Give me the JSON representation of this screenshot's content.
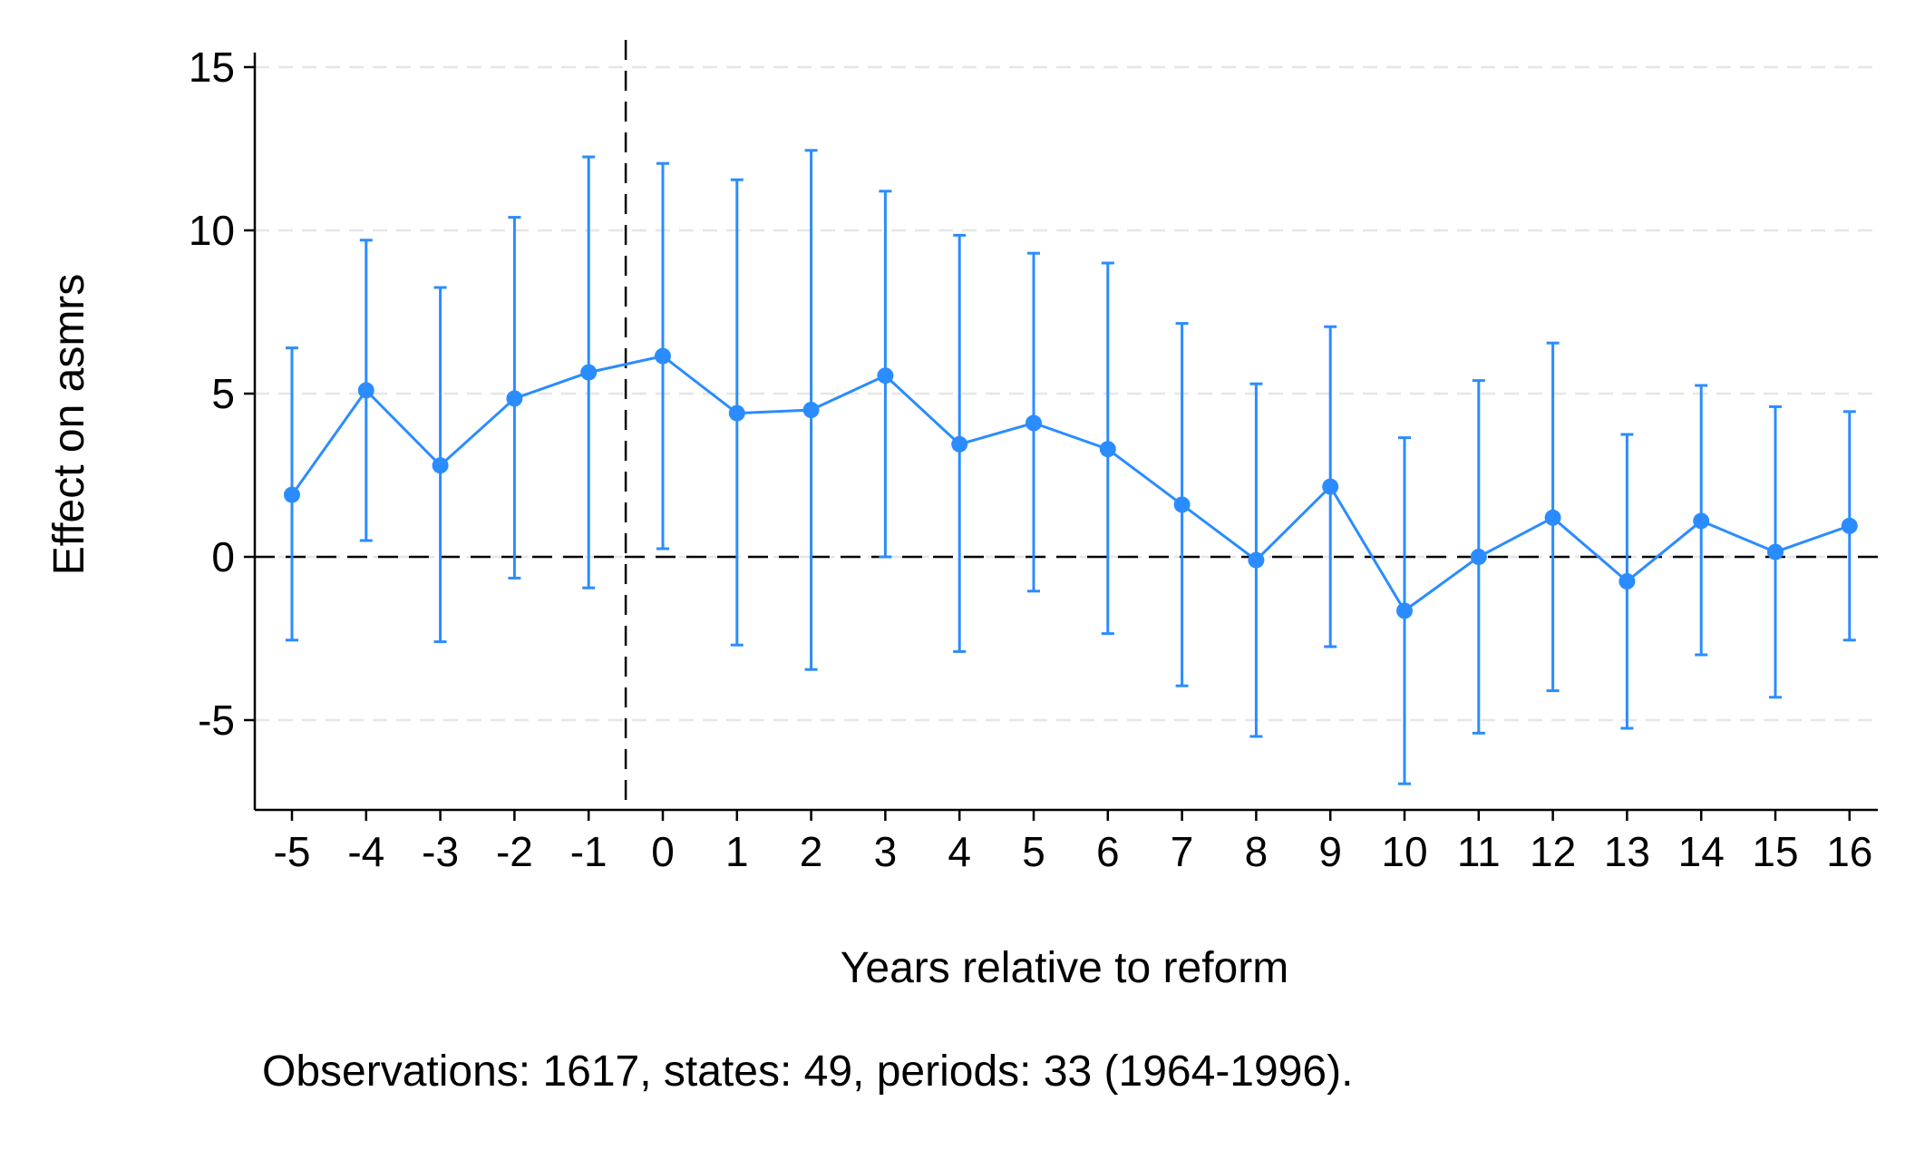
{
  "chart_data": {
    "type": "scatter",
    "title": "",
    "xlabel": "Years relative to reform",
    "ylabel": "Effect on asmrs",
    "note": "Observations: 1617, states: 49, periods: 33 (1964-1996).",
    "x": [
      -5,
      -4,
      -3,
      -2,
      -1,
      0,
      1,
      2,
      3,
      4,
      5,
      6,
      7,
      8,
      9,
      10,
      11,
      12,
      13,
      14,
      15,
      16
    ],
    "x_tick_labels": [
      "-5",
      "-4",
      "-3",
      "-2",
      "-1",
      "0",
      "1",
      "2",
      "3",
      "4",
      "5",
      "6",
      "7",
      "8",
      "9",
      "10",
      "11",
      "12",
      "13",
      "14",
      "15",
      "16"
    ],
    "y_ticks": [
      -5,
      0,
      5,
      10,
      15
    ],
    "y_tick_labels": [
      "-5",
      "0",
      "5",
      "10",
      "15"
    ],
    "ylim": [
      -7.8,
      15.5
    ],
    "series": [
      {
        "estimate": [
          1.9,
          5.1,
          2.8,
          4.85,
          5.65,
          6.15,
          4.4,
          4.5,
          5.55,
          3.45,
          4.1,
          3.3,
          1.6,
          -0.1,
          2.15,
          -1.65,
          0.0,
          1.2,
          -0.75,
          1.1,
          0.15,
          0.95
        ],
        "ci_low": [
          -2.55,
          0.5,
          -2.6,
          -0.65,
          -0.95,
          0.25,
          -2.7,
          -3.45,
          0.0,
          -2.9,
          -1.05,
          -2.35,
          -3.95,
          -5.5,
          -2.75,
          -6.95,
          -5.4,
          -4.1,
          -5.25,
          -3.0,
          -4.3,
          -2.55
        ],
        "ci_high": [
          6.4,
          9.7,
          8.25,
          10.4,
          12.25,
          12.05,
          11.55,
          12.45,
          11.2,
          9.85,
          9.3,
          9.0,
          7.15,
          5.3,
          7.05,
          3.65,
          5.4,
          6.55,
          3.75,
          5.25,
          4.6,
          4.45
        ]
      }
    ],
    "reference_lines": {
      "horizontal_y": 0,
      "vertical_x": -0.5
    },
    "grid": "horizontal dashed",
    "legend": "none",
    "colors": {
      "series": "#2b8cff",
      "axis": "#000000",
      "grid": "#e6e6e6",
      "reference": "#000000"
    }
  }
}
